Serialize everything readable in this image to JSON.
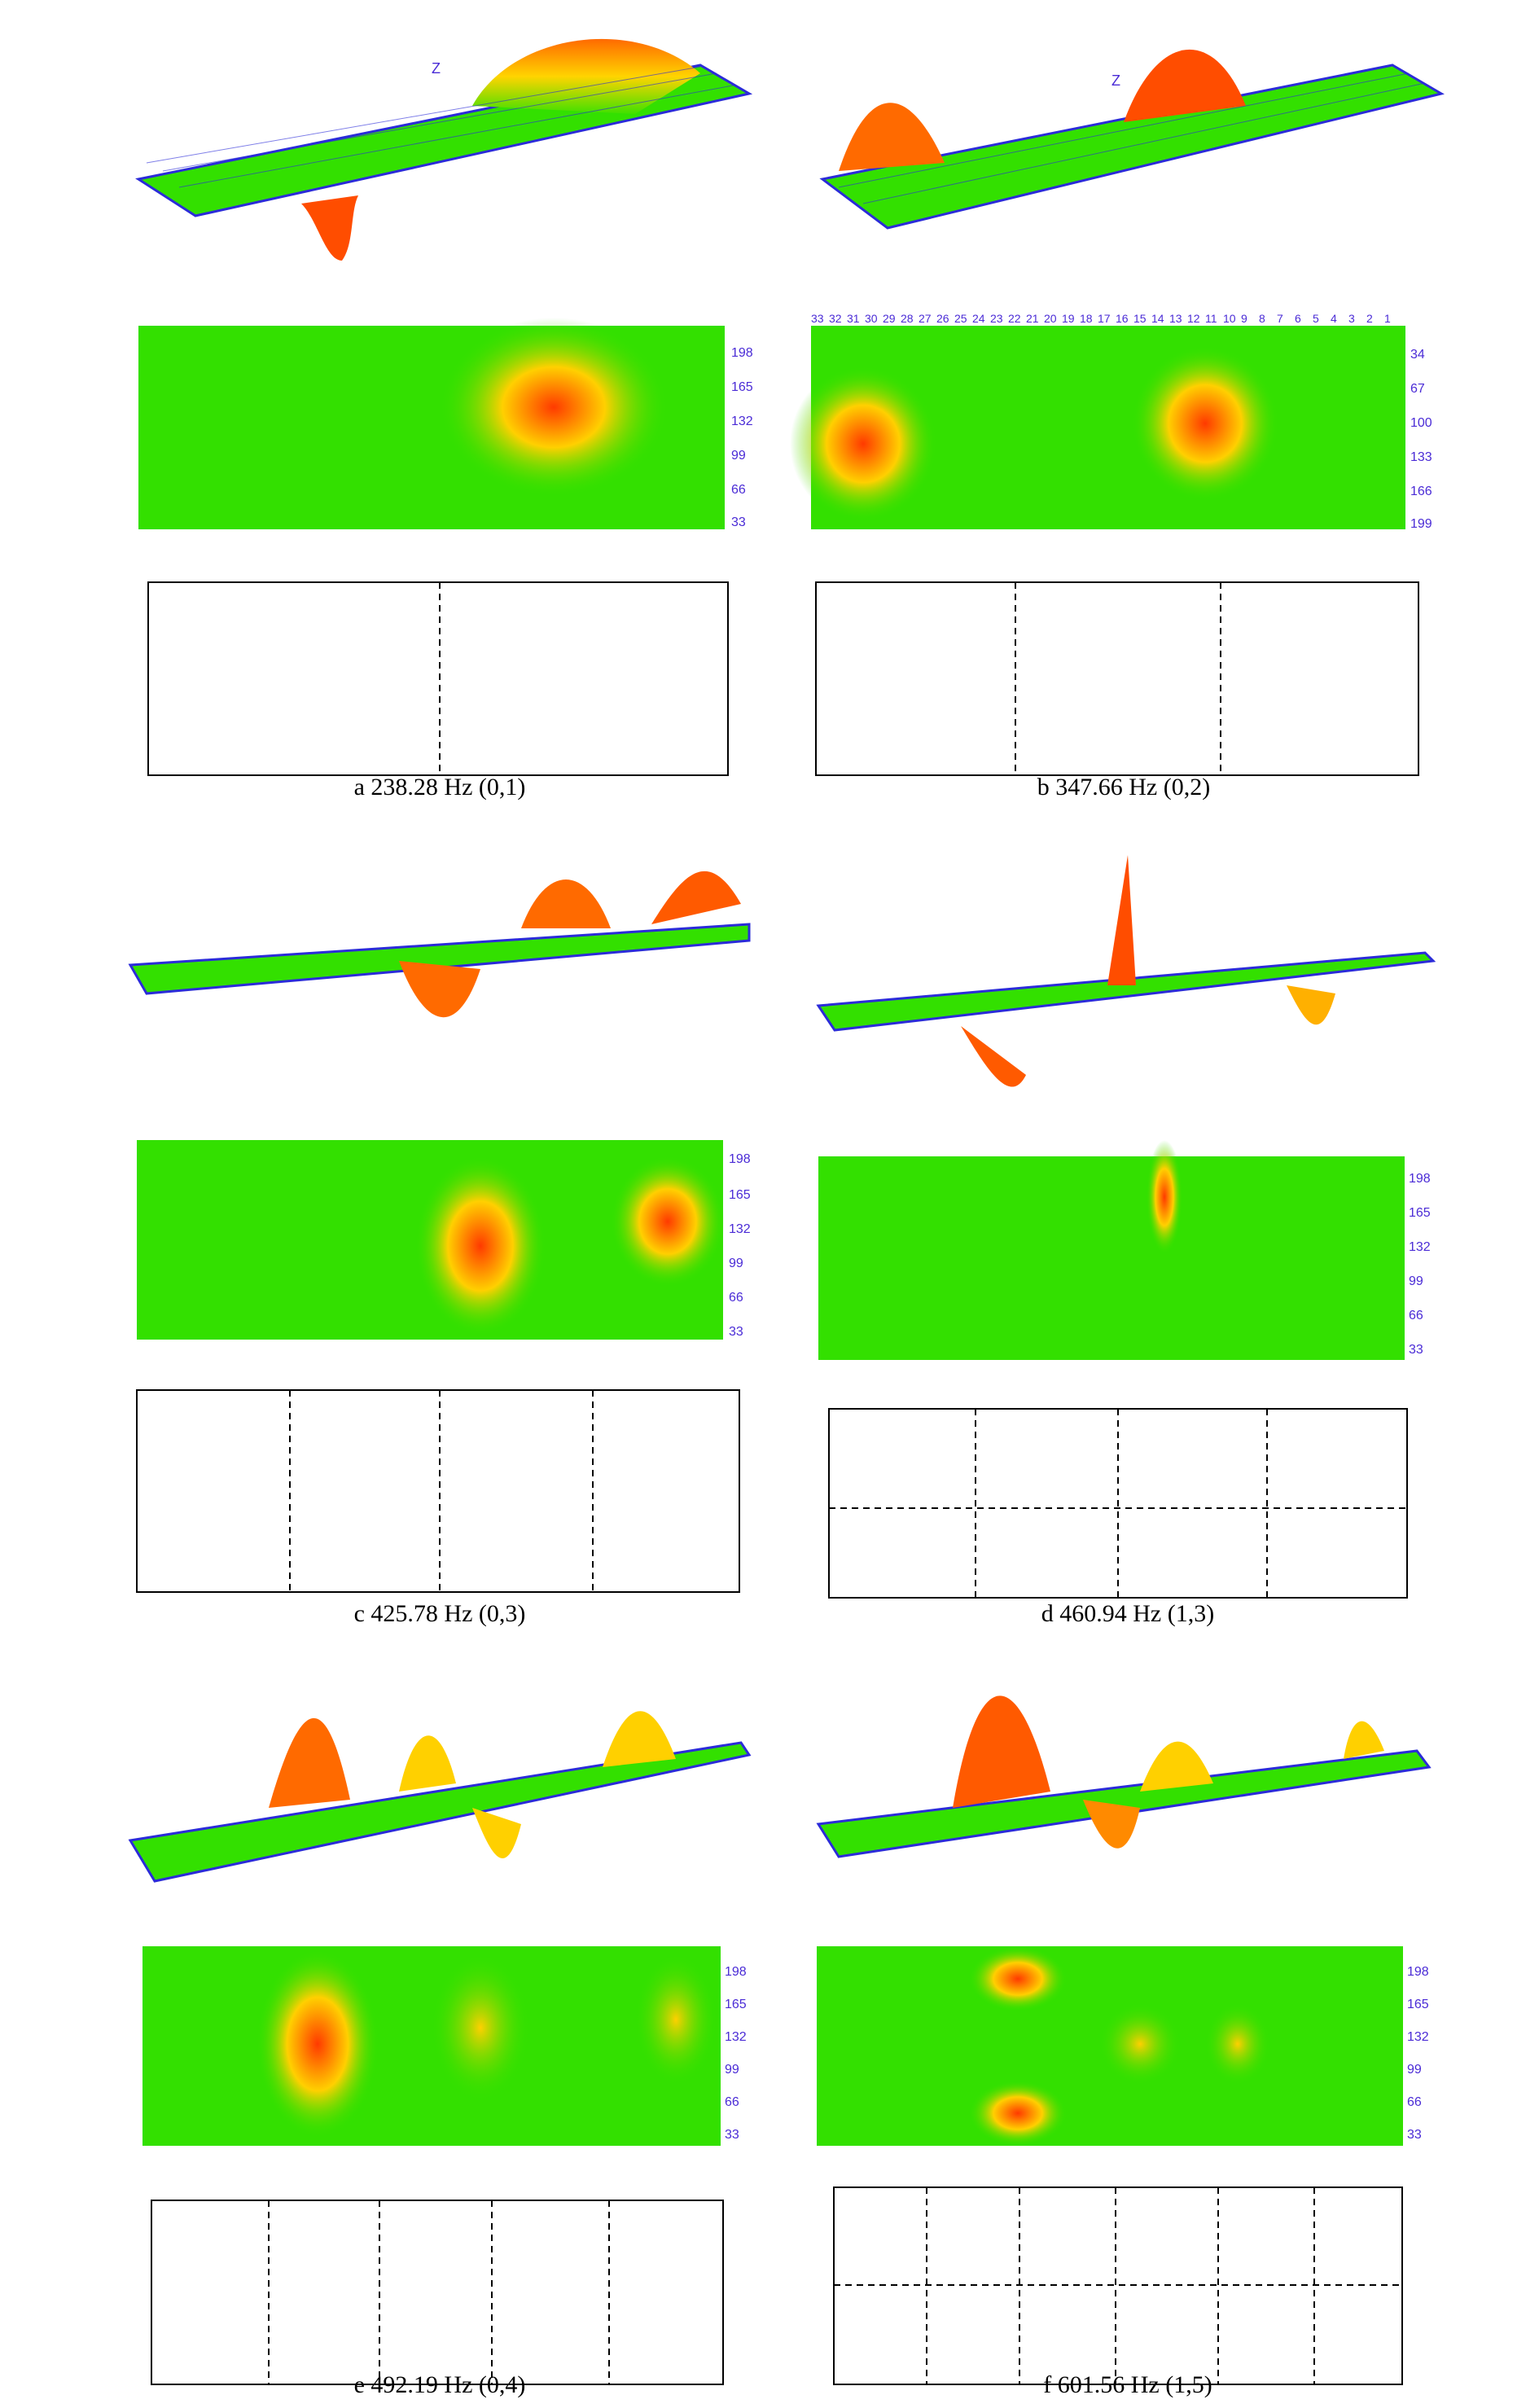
{
  "figure": {
    "panels": [
      {
        "id": "a",
        "caption": "a 238.28 Hz (0,1)",
        "mode": [
          0,
          1
        ],
        "freq": "238.28",
        "contour_axis_right": [
          "198",
          "165",
          "132",
          "99",
          "66",
          "33"
        ],
        "z_label": "Z"
      },
      {
        "id": "b",
        "caption": "b 347.66 Hz (0,2)",
        "mode": [
          0,
          2
        ],
        "freq": "347.66",
        "contour_axis_right": [
          "34",
          "67",
          "100",
          "133",
          "166",
          "199"
        ],
        "contour_axis_top": [
          "33",
          "32",
          "31",
          "30",
          "29",
          "28",
          "27",
          "26",
          "25",
          "24",
          "23",
          "22",
          "21",
          "20",
          "19",
          "18",
          "17",
          "16",
          "15",
          "14",
          "13",
          "12",
          "11",
          "10",
          "9",
          "8",
          "7",
          "6",
          "5",
          "4",
          "3",
          "2",
          "1"
        ],
        "z_label": "Z"
      },
      {
        "id": "c",
        "caption": "c 425.78 Hz (0,3)",
        "mode": [
          0,
          3
        ],
        "freq": "425.78",
        "contour_axis_right": [
          "198",
          "165",
          "132",
          "99",
          "66",
          "33"
        ]
      },
      {
        "id": "d",
        "caption": "d 460.94 Hz (1,3)",
        "mode": [
          1,
          3
        ],
        "freq": "460.94",
        "contour_axis_right": [
          "198",
          "165",
          "132",
          "99",
          "66",
          "33"
        ]
      },
      {
        "id": "e",
        "caption": "e 492.19 Hz (0,4)",
        "mode": [
          0,
          4
        ],
        "freq": "492.19",
        "contour_axis_right": [
          "198",
          "165",
          "132",
          "99",
          "66",
          "33"
        ]
      },
      {
        "id": "f",
        "caption": "f 601.56 Hz (1,5)",
        "mode": [
          1,
          5
        ],
        "freq": "601.56",
        "contour_axis_right": [
          "198",
          "165",
          "132",
          "99",
          "66",
          "33"
        ]
      }
    ],
    "colors": {
      "surface_low": "#22e000",
      "surface_mid": "#ffff00",
      "surface_high": "#ff2a00",
      "grid": "#2b2bd9",
      "nodal": "#000000"
    }
  }
}
